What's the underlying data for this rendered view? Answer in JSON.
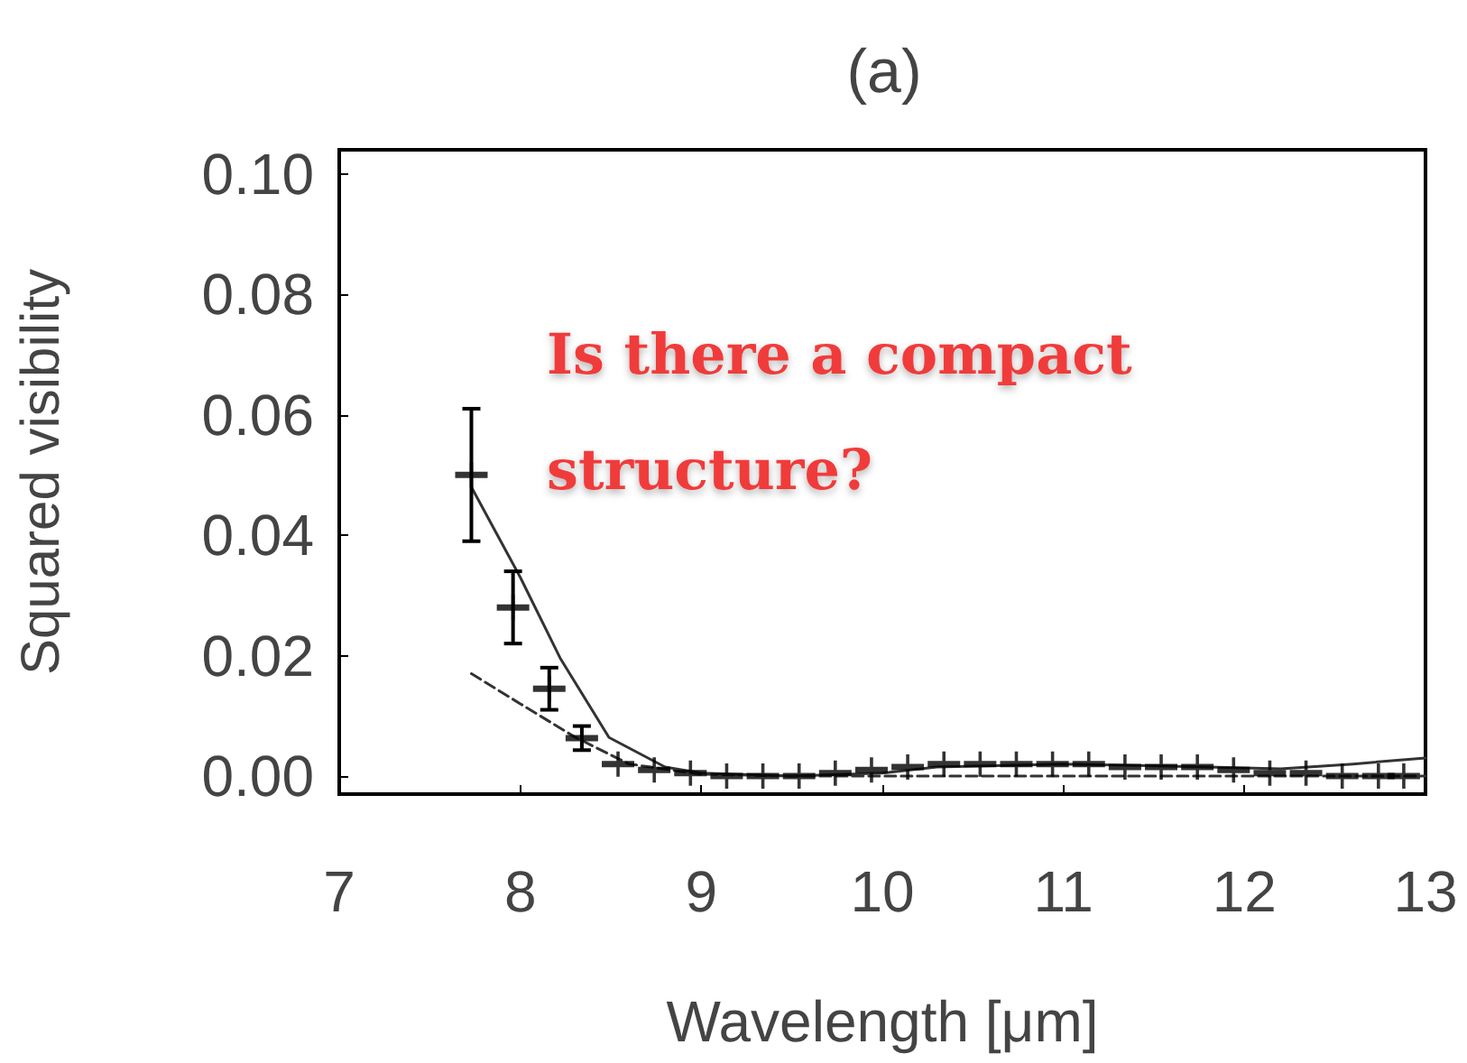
{
  "chart_data": {
    "type": "scatter",
    "title": "(a)",
    "xlabel": "Wavelength [μm]",
    "ylabel": "Squared visibility",
    "annotations": [
      "Is there a compact structure?"
    ],
    "xlim": [
      7,
      13
    ],
    "xticks": [
      7,
      8,
      9,
      10,
      11,
      12,
      13
    ],
    "ylim": [
      -0.003,
      0.104
    ],
    "yticks": [
      {
        "value": 0,
        "label": "0.00"
      },
      {
        "value": 0.02,
        "label": "0.02"
      },
      {
        "value": 0.04,
        "label": "0.04"
      },
      {
        "value": 0.06,
        "label": "0.06"
      },
      {
        "value": 0.08,
        "label": "0.08"
      },
      {
        "value": 0.1,
        "label": "0.10"
      }
    ],
    "grid": false,
    "marker": "cross",
    "series": [
      {
        "color": "#000000",
        "x": [
          7.73,
          7.96,
          8.16,
          8.34,
          8.54,
          8.74,
          8.94,
          9.14,
          9.34,
          9.54,
          9.74,
          9.94,
          10.14,
          10.34,
          10.54,
          10.74,
          10.94,
          11.14,
          11.34,
          11.54,
          11.74,
          11.94,
          12.14,
          12.34,
          12.54,
          12.74,
          12.88
        ],
        "values": [
          0.05,
          0.028,
          0.0145,
          0.0063,
          0.002,
          0.001,
          0.0005,
          0,
          0,
          0,
          0.0005,
          0.001,
          0.0015,
          0.002,
          0.002,
          0.002,
          0.002,
          0.002,
          0.0015,
          0.0015,
          0.0015,
          0.001,
          0.0005,
          0.0005,
          0,
          0,
          0
        ],
        "errors": [
          0.011,
          0.006,
          0.0035,
          0.002,
          null,
          null,
          null,
          null,
          null,
          null,
          null,
          null,
          null,
          null,
          null,
          null,
          null,
          null,
          null,
          null,
          null,
          null,
          null,
          null,
          null,
          null,
          null
        ]
      },
      {
        "type": "line",
        "color": "#333333",
        "line_style": "solid",
        "marker": "none",
        "x": [
          7.73,
          8.0,
          8.22,
          8.49,
          8.8,
          9.0,
          9.5,
          10.0,
          10.3,
          11.0,
          11.8,
          12.2,
          12.6,
          13.0
        ],
        "values": [
          0.048,
          0.033,
          0.0196,
          0.0064,
          0.0015,
          0.0005,
          0,
          0.0005,
          0.0015,
          0.002,
          0.0015,
          0.0012,
          0.002,
          0.003
        ]
      },
      {
        "type": "line",
        "color": "#333333",
        "line_style": "dashed",
        "marker": "none",
        "x": [
          7.73,
          8.0,
          8.3,
          8.6,
          9.0,
          9.5,
          10.5,
          12.0,
          13.0
        ],
        "values": [
          0.017,
          0.012,
          0.0065,
          0.002,
          0.0003,
          0,
          0,
          0,
          0
        ]
      }
    ]
  }
}
